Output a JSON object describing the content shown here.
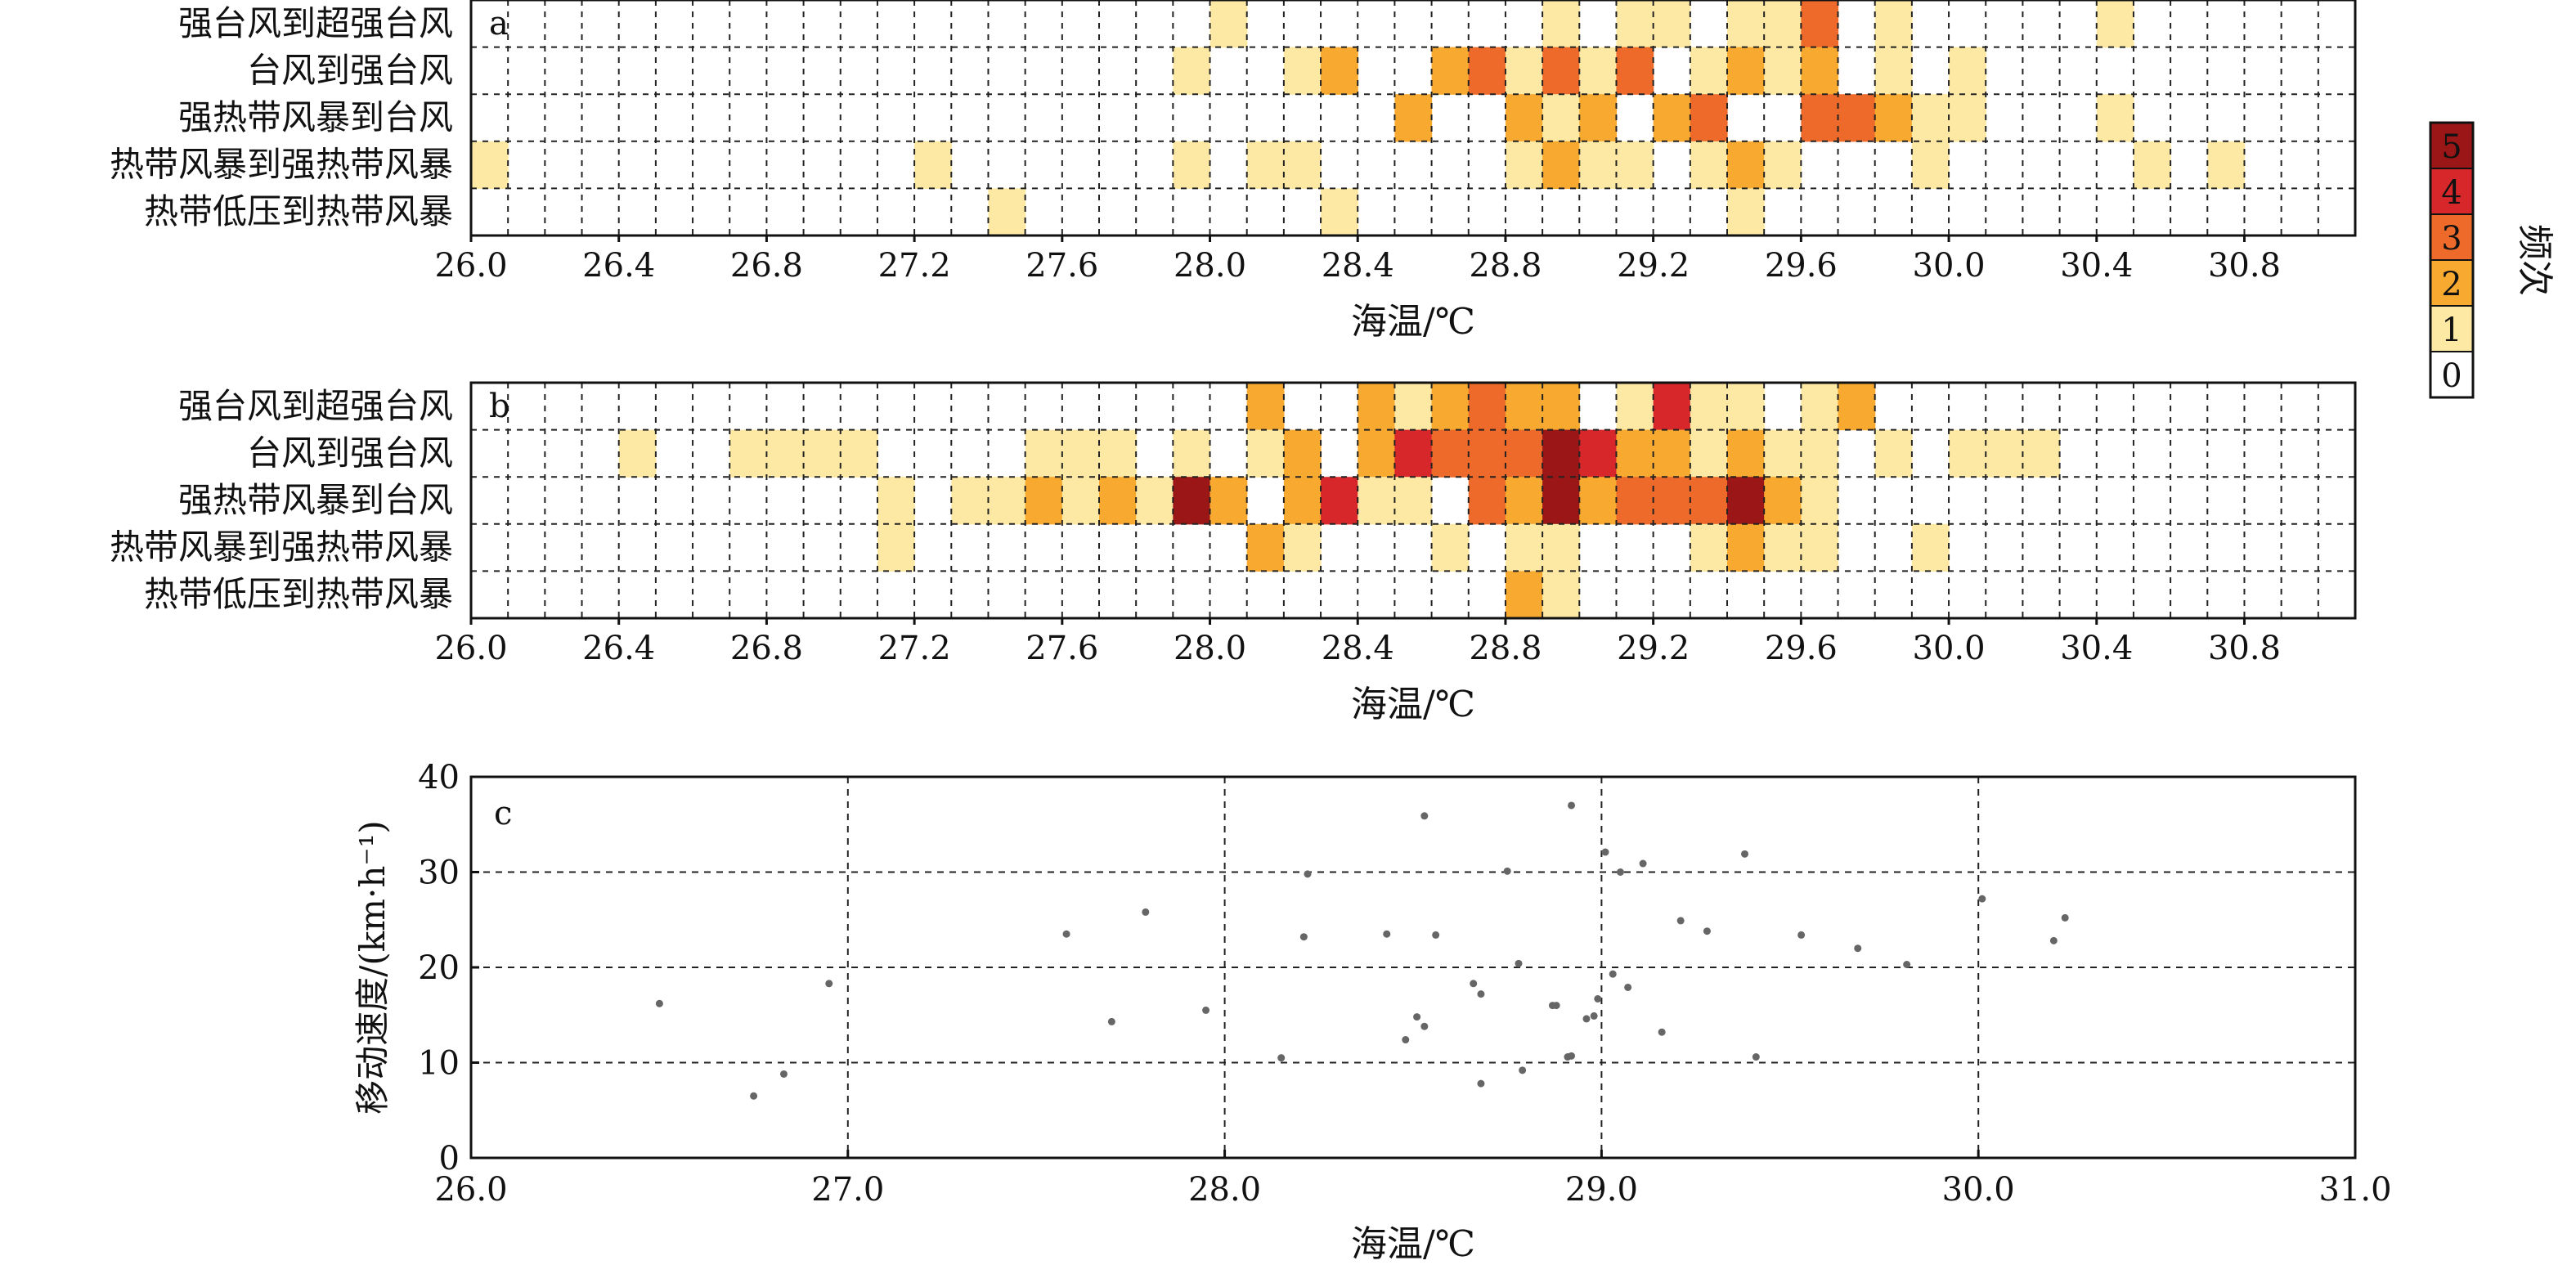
{
  "colorbar": {
    "label": "频次",
    "levels": [
      "0",
      "1",
      "2",
      "3",
      "4",
      "5"
    ],
    "colors": [
      "#ffffff",
      "#fde9a4",
      "#f8a930",
      "#ee6a2a",
      "#d8272a",
      "#9b1616"
    ]
  },
  "chart_data": [
    {
      "type": "heatmap",
      "panel_label": "a",
      "xlabel": "海温/℃",
      "ylabel": "",
      "xlim": [
        26.0,
        31.1
      ],
      "bin_width": 0.1,
      "x_ticks": [
        "26.0",
        "26.4",
        "26.8",
        "27.2",
        "27.6",
        "28.0",
        "28.4",
        "28.8",
        "29.2",
        "29.6",
        "30.0",
        "30.4",
        "30.8"
      ],
      "categories": [
        "强台风到超强台风",
        "台风到强台风",
        "强热带风暴到台风",
        "热带风暴到强热带风暴",
        "热带低压到热带风暴"
      ],
      "cells": [
        [
          28.0,
          0,
          1
        ],
        [
          28.9,
          0,
          1
        ],
        [
          29.1,
          0,
          1
        ],
        [
          29.2,
          0,
          1
        ],
        [
          29.4,
          0,
          1
        ],
        [
          29.5,
          0,
          1
        ],
        [
          29.6,
          0,
          3
        ],
        [
          29.8,
          0,
          1
        ],
        [
          30.4,
          0,
          1
        ],
        [
          27.9,
          1,
          1
        ],
        [
          28.2,
          1,
          1
        ],
        [
          28.3,
          1,
          2
        ],
        [
          28.6,
          1,
          2
        ],
        [
          28.7,
          1,
          3
        ],
        [
          28.8,
          1,
          1
        ],
        [
          28.9,
          1,
          3
        ],
        [
          29.0,
          1,
          1
        ],
        [
          29.1,
          1,
          3
        ],
        [
          29.3,
          1,
          1
        ],
        [
          29.4,
          1,
          2
        ],
        [
          29.5,
          1,
          1
        ],
        [
          29.6,
          1,
          2
        ],
        [
          29.8,
          1,
          1
        ],
        [
          30.0,
          1,
          1
        ],
        [
          28.5,
          2,
          2
        ],
        [
          28.8,
          2,
          2
        ],
        [
          28.9,
          2,
          1
        ],
        [
          29.0,
          2,
          2
        ],
        [
          29.2,
          2,
          2
        ],
        [
          29.3,
          2,
          3
        ],
        [
          29.6,
          2,
          3
        ],
        [
          29.7,
          2,
          3
        ],
        [
          29.8,
          2,
          2
        ],
        [
          29.9,
          2,
          1
        ],
        [
          30.0,
          2,
          1
        ],
        [
          30.4,
          2,
          1
        ],
        [
          26.0,
          3,
          1
        ],
        [
          27.2,
          3,
          1
        ],
        [
          27.9,
          3,
          1
        ],
        [
          28.1,
          3,
          1
        ],
        [
          28.2,
          3,
          1
        ],
        [
          28.8,
          3,
          1
        ],
        [
          28.9,
          3,
          2
        ],
        [
          29.0,
          3,
          1
        ],
        [
          29.1,
          3,
          1
        ],
        [
          29.3,
          3,
          1
        ],
        [
          29.4,
          3,
          2
        ],
        [
          29.5,
          3,
          1
        ],
        [
          29.9,
          3,
          1
        ],
        [
          30.5,
          3,
          1
        ],
        [
          30.7,
          3,
          1
        ],
        [
          27.4,
          4,
          1
        ],
        [
          28.3,
          4,
          1
        ],
        [
          29.4,
          4,
          1
        ]
      ]
    },
    {
      "type": "heatmap",
      "panel_label": "b",
      "xlabel": "海温/℃",
      "ylabel": "",
      "xlim": [
        26.0,
        31.1
      ],
      "bin_width": 0.1,
      "x_ticks": [
        "26.0",
        "26.4",
        "26.8",
        "27.2",
        "27.6",
        "28.0",
        "28.4",
        "28.8",
        "29.2",
        "29.6",
        "30.0",
        "30.4",
        "30.8"
      ],
      "categories": [
        "强台风到超强台风",
        "台风到强台风",
        "强热带风暴到台风",
        "热带风暴到强热带风暴",
        "热带低压到热带风暴"
      ],
      "cells": [
        [
          28.1,
          0,
          2
        ],
        [
          28.4,
          0,
          2
        ],
        [
          28.5,
          0,
          1
        ],
        [
          28.6,
          0,
          2
        ],
        [
          28.7,
          0,
          3
        ],
        [
          28.8,
          0,
          2
        ],
        [
          28.9,
          0,
          2
        ],
        [
          29.1,
          0,
          1
        ],
        [
          29.2,
          0,
          4
        ],
        [
          29.3,
          0,
          1
        ],
        [
          29.4,
          0,
          1
        ],
        [
          29.6,
          0,
          1
        ],
        [
          29.7,
          0,
          2
        ],
        [
          26.4,
          1,
          1
        ],
        [
          26.7,
          1,
          1
        ],
        [
          26.8,
          1,
          1
        ],
        [
          26.9,
          1,
          1
        ],
        [
          27.0,
          1,
          1
        ],
        [
          27.5,
          1,
          1
        ],
        [
          27.6,
          1,
          1
        ],
        [
          27.7,
          1,
          1
        ],
        [
          27.9,
          1,
          1
        ],
        [
          28.1,
          1,
          1
        ],
        [
          28.2,
          1,
          2
        ],
        [
          28.4,
          1,
          2
        ],
        [
          28.5,
          1,
          4
        ],
        [
          28.6,
          1,
          3
        ],
        [
          28.7,
          1,
          3
        ],
        [
          28.8,
          1,
          3
        ],
        [
          28.9,
          1,
          5
        ],
        [
          29.0,
          1,
          4
        ],
        [
          29.1,
          1,
          2
        ],
        [
          29.2,
          1,
          2
        ],
        [
          29.3,
          1,
          1
        ],
        [
          29.4,
          1,
          2
        ],
        [
          29.5,
          1,
          1
        ],
        [
          29.6,
          1,
          1
        ],
        [
          29.8,
          1,
          1
        ],
        [
          30.0,
          1,
          1
        ],
        [
          30.1,
          1,
          1
        ],
        [
          30.2,
          1,
          1
        ],
        [
          27.1,
          2,
          1
        ],
        [
          27.3,
          2,
          1
        ],
        [
          27.4,
          2,
          1
        ],
        [
          27.5,
          2,
          2
        ],
        [
          27.6,
          2,
          1
        ],
        [
          27.7,
          2,
          2
        ],
        [
          27.8,
          2,
          1
        ],
        [
          27.9,
          2,
          5
        ],
        [
          28.0,
          2,
          2
        ],
        [
          28.2,
          2,
          2
        ],
        [
          28.3,
          2,
          4
        ],
        [
          28.4,
          2,
          1
        ],
        [
          28.5,
          2,
          1
        ],
        [
          28.7,
          2,
          3
        ],
        [
          28.8,
          2,
          2
        ],
        [
          28.9,
          2,
          5
        ],
        [
          29.0,
          2,
          2
        ],
        [
          29.1,
          2,
          3
        ],
        [
          29.2,
          2,
          3
        ],
        [
          29.3,
          2,
          3
        ],
        [
          29.4,
          2,
          5
        ],
        [
          29.5,
          2,
          2
        ],
        [
          29.6,
          2,
          1
        ],
        [
          27.1,
          3,
          1
        ],
        [
          28.1,
          3,
          2
        ],
        [
          28.2,
          3,
          1
        ],
        [
          28.6,
          3,
          1
        ],
        [
          28.8,
          3,
          1
        ],
        [
          28.9,
          3,
          1
        ],
        [
          29.3,
          3,
          1
        ],
        [
          29.4,
          3,
          2
        ],
        [
          29.5,
          3,
          1
        ],
        [
          29.6,
          3,
          1
        ],
        [
          29.9,
          3,
          1
        ],
        [
          28.8,
          4,
          2
        ],
        [
          28.9,
          4,
          1
        ]
      ]
    },
    {
      "type": "scatter",
      "panel_label": "c",
      "xlabel": "海温/℃",
      "ylabel": "移动速度/(km·h⁻¹)",
      "xlim": [
        26.0,
        31.0
      ],
      "ylim": [
        0,
        40
      ],
      "x_ticks": [
        "26.0",
        "27.0",
        "28.0",
        "29.0",
        "30.0",
        "31.0"
      ],
      "y_ticks": [
        "0",
        "10",
        "20",
        "30",
        "40"
      ],
      "grid": true,
      "points": [
        [
          26.5,
          16.2
        ],
        [
          26.75,
          6.5
        ],
        [
          26.83,
          8.8
        ],
        [
          26.95,
          18.3
        ],
        [
          27.58,
          23.5
        ],
        [
          27.7,
          14.3
        ],
        [
          27.79,
          25.8
        ],
        [
          27.95,
          15.5
        ],
        [
          28.15,
          10.5
        ],
        [
          28.21,
          23.2
        ],
        [
          28.22,
          29.8
        ],
        [
          28.43,
          23.5
        ],
        [
          28.48,
          12.4
        ],
        [
          28.51,
          14.8
        ],
        [
          28.53,
          13.8
        ],
        [
          28.53,
          35.9
        ],
        [
          28.56,
          23.4
        ],
        [
          28.66,
          18.3
        ],
        [
          28.68,
          17.2
        ],
        [
          28.68,
          7.8
        ],
        [
          28.75,
          30.1
        ],
        [
          28.78,
          20.4
        ],
        [
          28.79,
          9.2
        ],
        [
          28.87,
          16.0
        ],
        [
          28.88,
          16.0
        ],
        [
          28.91,
          10.6
        ],
        [
          28.92,
          10.7
        ],
        [
          28.92,
          37.0
        ],
        [
          28.96,
          14.6
        ],
        [
          28.98,
          14.9
        ],
        [
          28.99,
          16.7
        ],
        [
          29.01,
          32.1
        ],
        [
          29.03,
          19.3
        ],
        [
          29.05,
          30.0
        ],
        [
          29.07,
          17.9
        ],
        [
          29.11,
          30.9
        ],
        [
          29.16,
          13.2
        ],
        [
          29.21,
          24.9
        ],
        [
          29.28,
          23.8
        ],
        [
          29.38,
          31.9
        ],
        [
          29.41,
          10.6
        ],
        [
          29.53,
          23.4
        ],
        [
          29.68,
          22.0
        ],
        [
          29.81,
          20.3
        ],
        [
          30.01,
          27.2
        ],
        [
          30.2,
          22.8
        ],
        [
          30.23,
          25.2
        ]
      ]
    }
  ]
}
